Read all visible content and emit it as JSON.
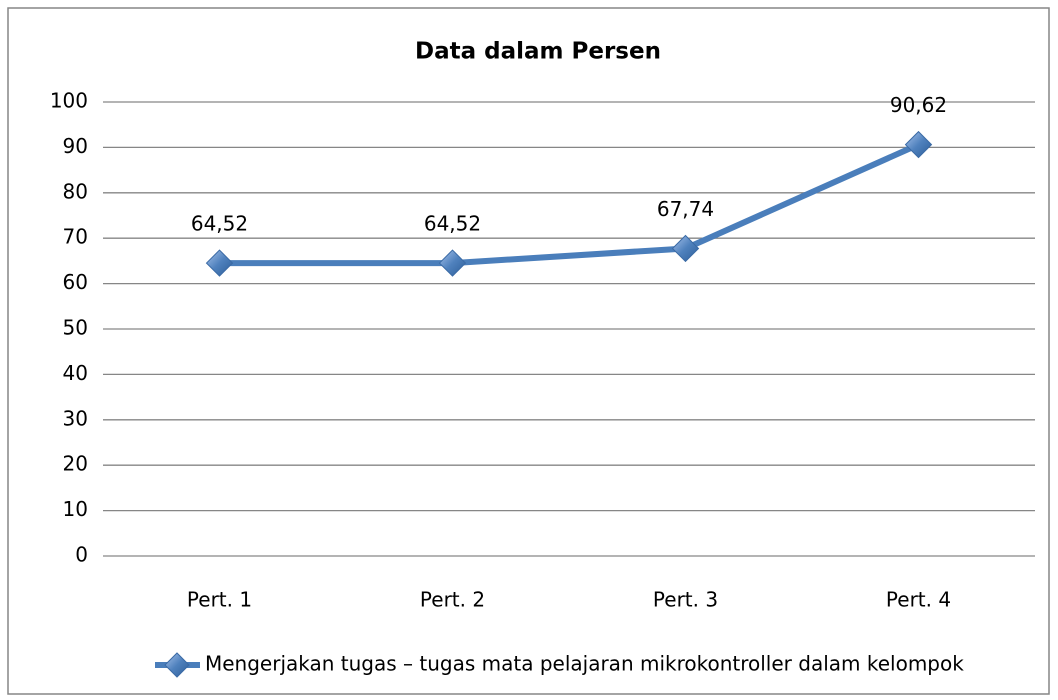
{
  "chart_data": {
    "type": "line",
    "title": "Data dalam Persen",
    "categories": [
      "Pert. 1",
      "Pert. 2",
      "Pert. 3",
      "Pert. 4"
    ],
    "series": [
      {
        "name": "Mengerjakan tugas – tugas mata pelajaran mikrokontroller dalam kelompok",
        "color": "#4a7ebb",
        "values": [
          64.52,
          64.52,
          67.74,
          90.62
        ],
        "value_labels": [
          "64,52",
          "64,52",
          "67,74",
          "90,62"
        ]
      }
    ],
    "ylim": [
      0,
      100
    ],
    "yticks": [
      0,
      10,
      20,
      30,
      40,
      50,
      60,
      70,
      80,
      90,
      100
    ],
    "grid": true,
    "legend": "bottom"
  }
}
